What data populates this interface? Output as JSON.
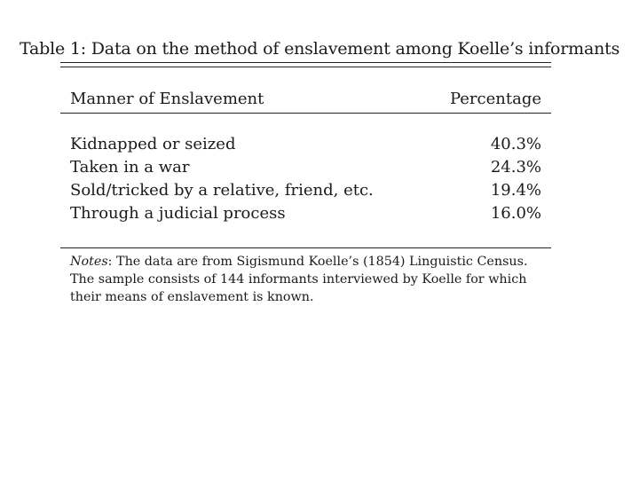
{
  "caption": "Table 1: Data on the method of enslavement among Koelle’s informants",
  "table": {
    "headers": {
      "manner": "Manner of Enslavement",
      "percentage": "Percentage"
    },
    "rows": [
      {
        "manner": "Kidnapped or seized",
        "percentage": "40.3%"
      },
      {
        "manner": "Taken in a war",
        "percentage": "24.3%"
      },
      {
        "manner": "Sold/tricked by a relative, friend, etc.",
        "percentage": "19.4%"
      },
      {
        "manner": "Through a judicial process",
        "percentage": "16.0%"
      }
    ]
  },
  "notes": {
    "label": "Notes",
    "line1": ": The data are from Sigismund Koelle’s (1854) Linguistic Census.",
    "line2": "The sample consists of 144 informants interviewed by Koelle for which",
    "line3": "their means of enslavement is known."
  }
}
